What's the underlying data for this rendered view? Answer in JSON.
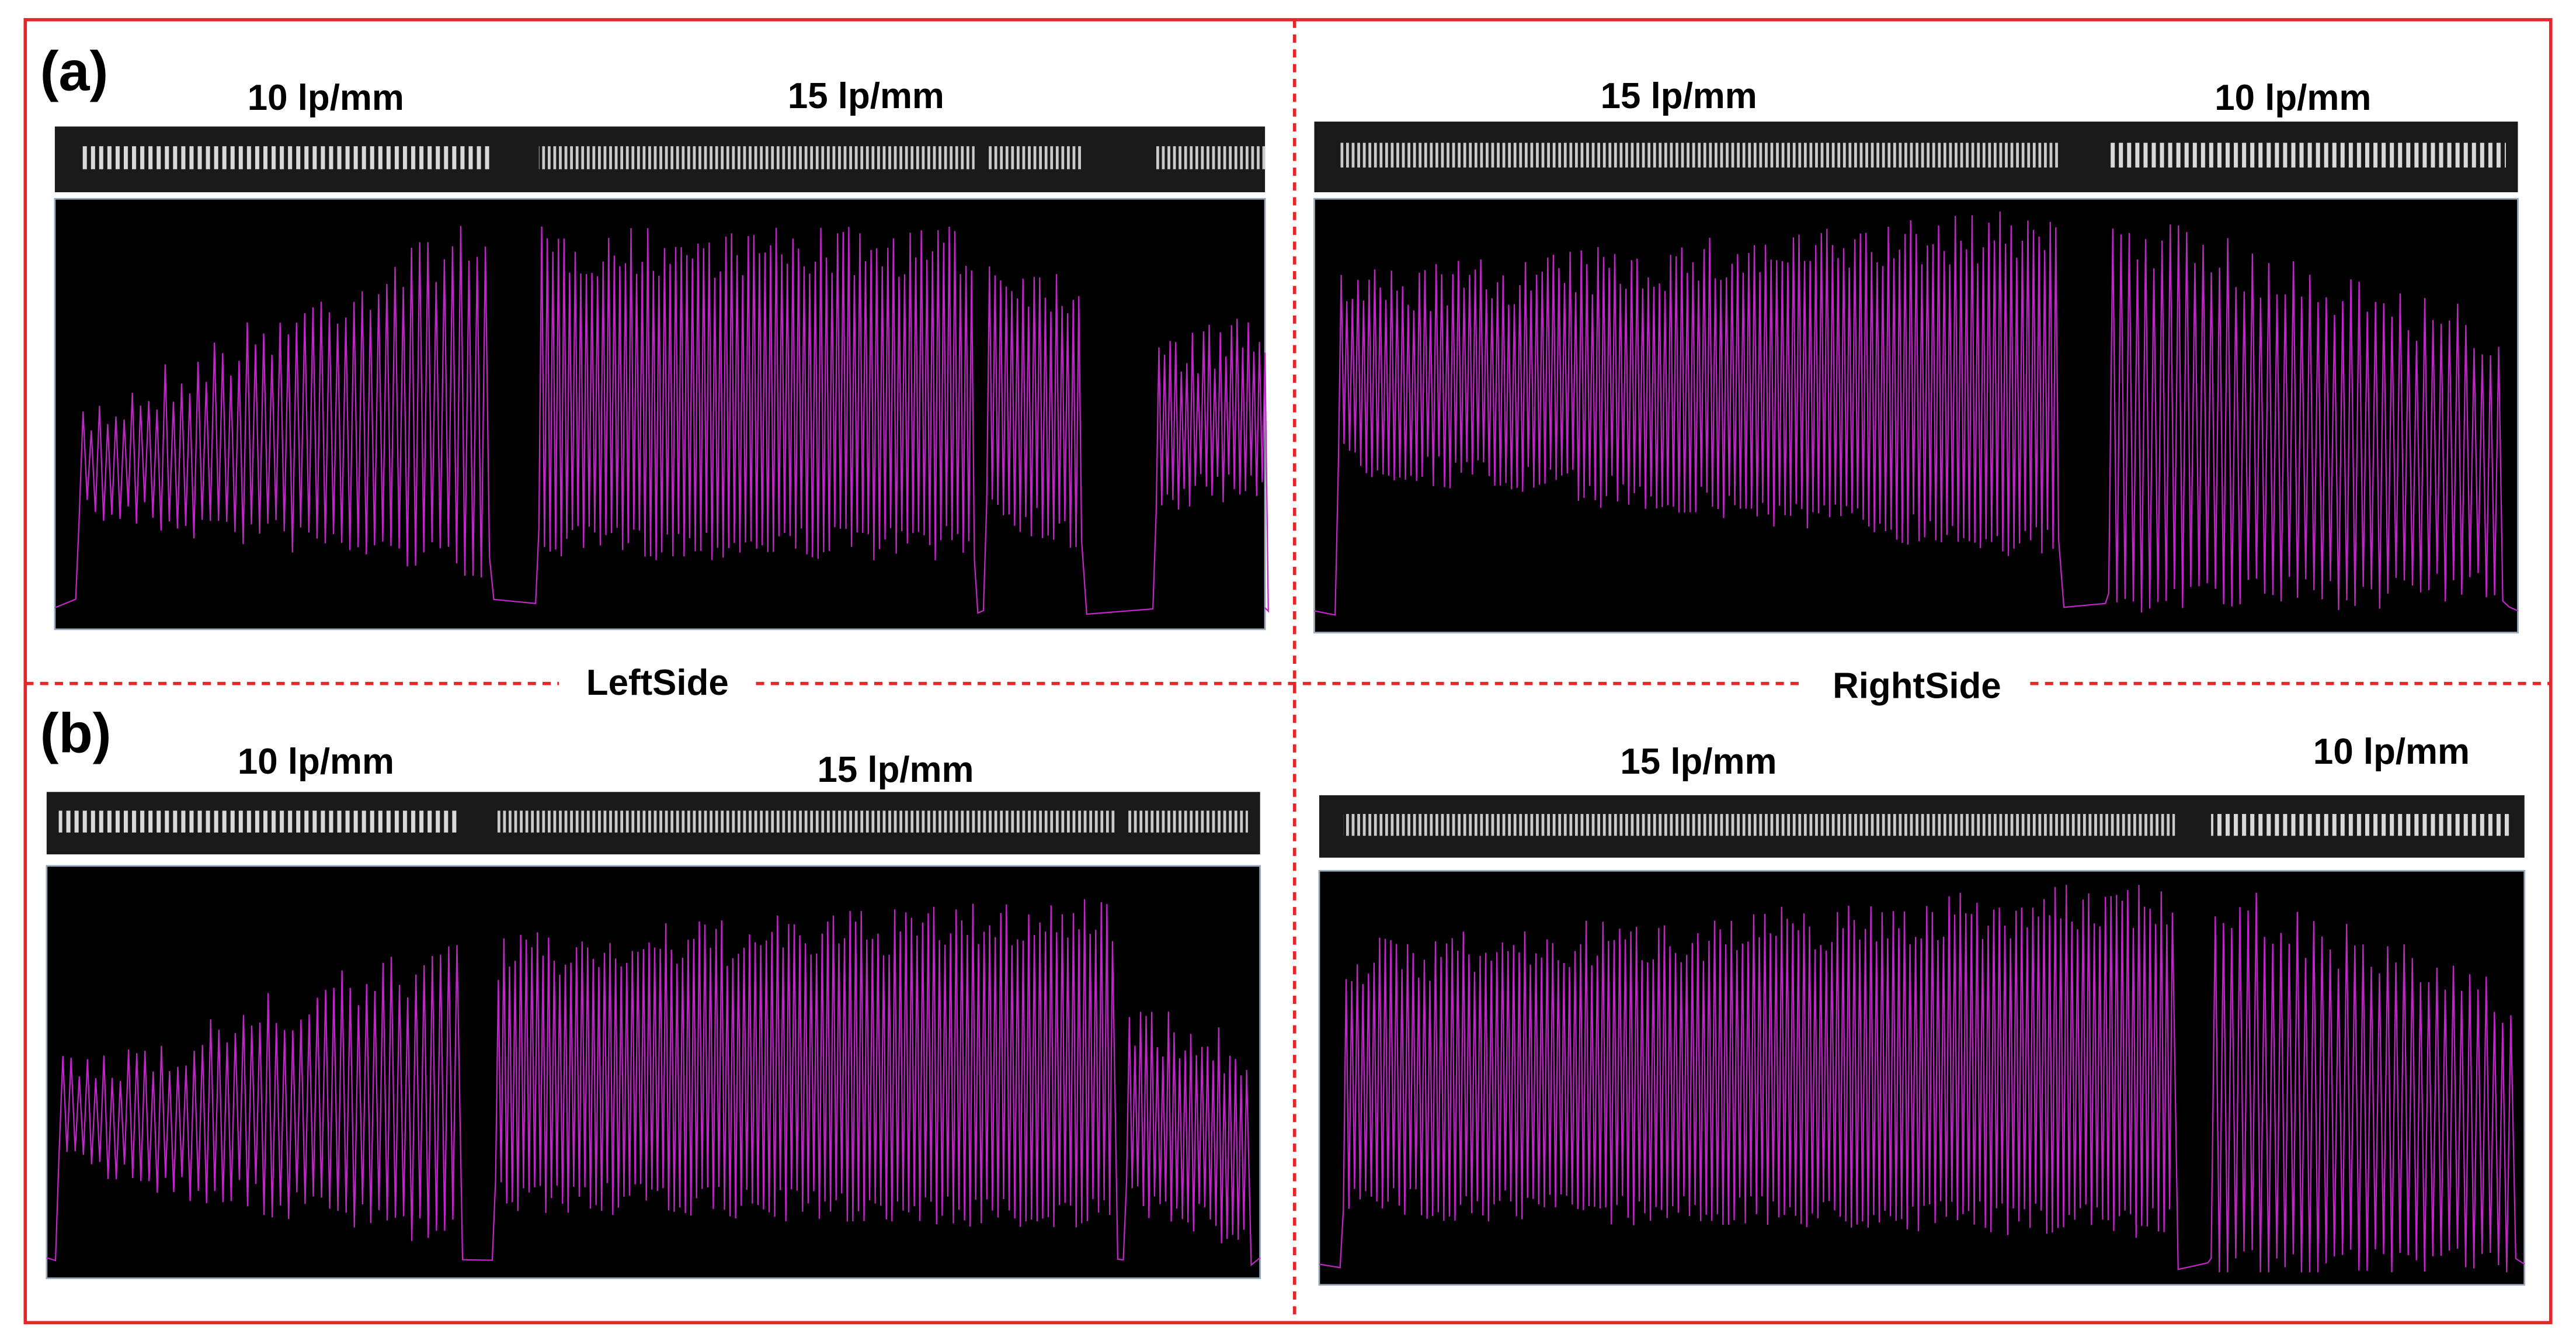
{
  "panels": [
    {
      "tag": "(a)",
      "left": {
        "labels": [
          "10 lp/mm",
          "15 lp/mm"
        ]
      },
      "right": {
        "labels": [
          "15 lp/mm",
          "10 lp/mm"
        ]
      }
    },
    {
      "tag": "(b)",
      "left": {
        "labels": [
          "10 lp/mm",
          "15 lp/mm"
        ]
      },
      "right": {
        "labels": [
          "15 lp/mm",
          "10 lp/mm"
        ]
      }
    }
  ],
  "divider": {
    "left": "LeftSide",
    "right": "RightSide"
  }
}
